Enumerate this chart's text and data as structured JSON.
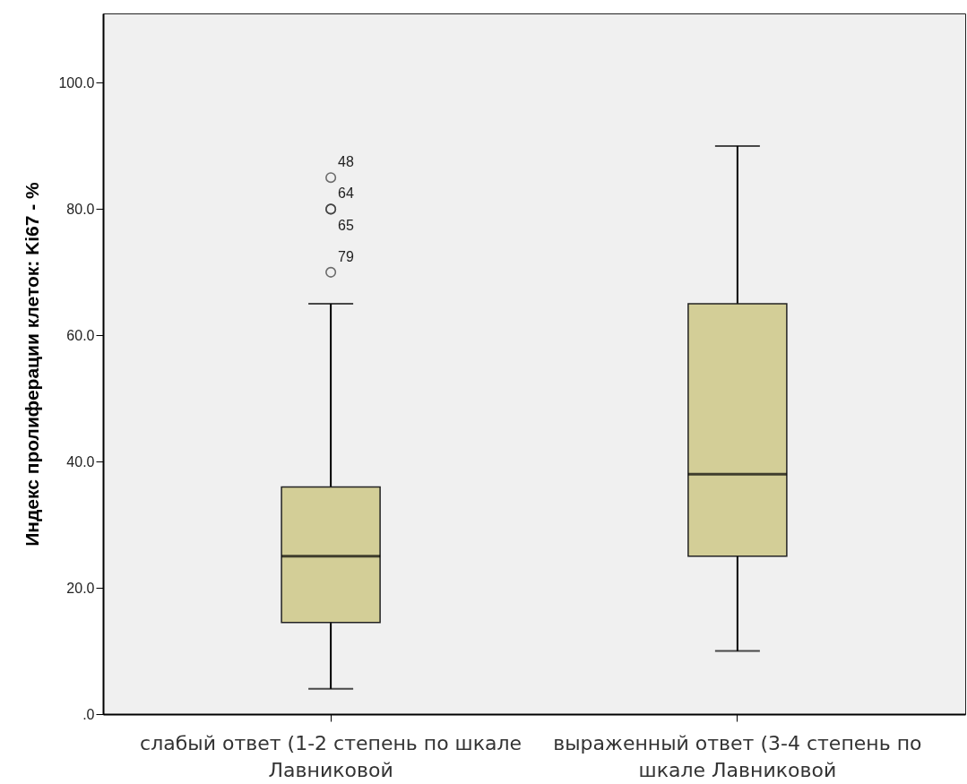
{
  "chart_data": {
    "type": "box",
    "ylabel": "Индекс пролиферации клеток: Ki67 - %",
    "categories": [
      "слабый ответ (1-2 степень по шкале Лавниковой",
      "выраженный ответ (3-4 степень по шкале Лавниковой"
    ],
    "boxes": [
      {
        "low": 4,
        "q1": 14.5,
        "median": 25,
        "q3": 36,
        "high": 65,
        "outliers": [
          85,
          80,
          80,
          70
        ]
      },
      {
        "low": 10,
        "q1": 25,
        "median": 38,
        "q3": 65,
        "high": 90
      }
    ],
    "color": "#d3ce97",
    "ylim": [
      0,
      111
    ],
    "yticks": [
      {
        "value": 0,
        "label": ".0"
      },
      {
        "value": 20,
        "label": "20.0"
      },
      {
        "value": 40,
        "label": "40.0"
      },
      {
        "value": 60,
        "label": "60.0"
      },
      {
        "value": 80,
        "label": "80.0"
      },
      {
        "value": 100,
        "label": "100.0"
      }
    ],
    "annotations": [
      "48",
      "64",
      "65",
      "79"
    ]
  }
}
